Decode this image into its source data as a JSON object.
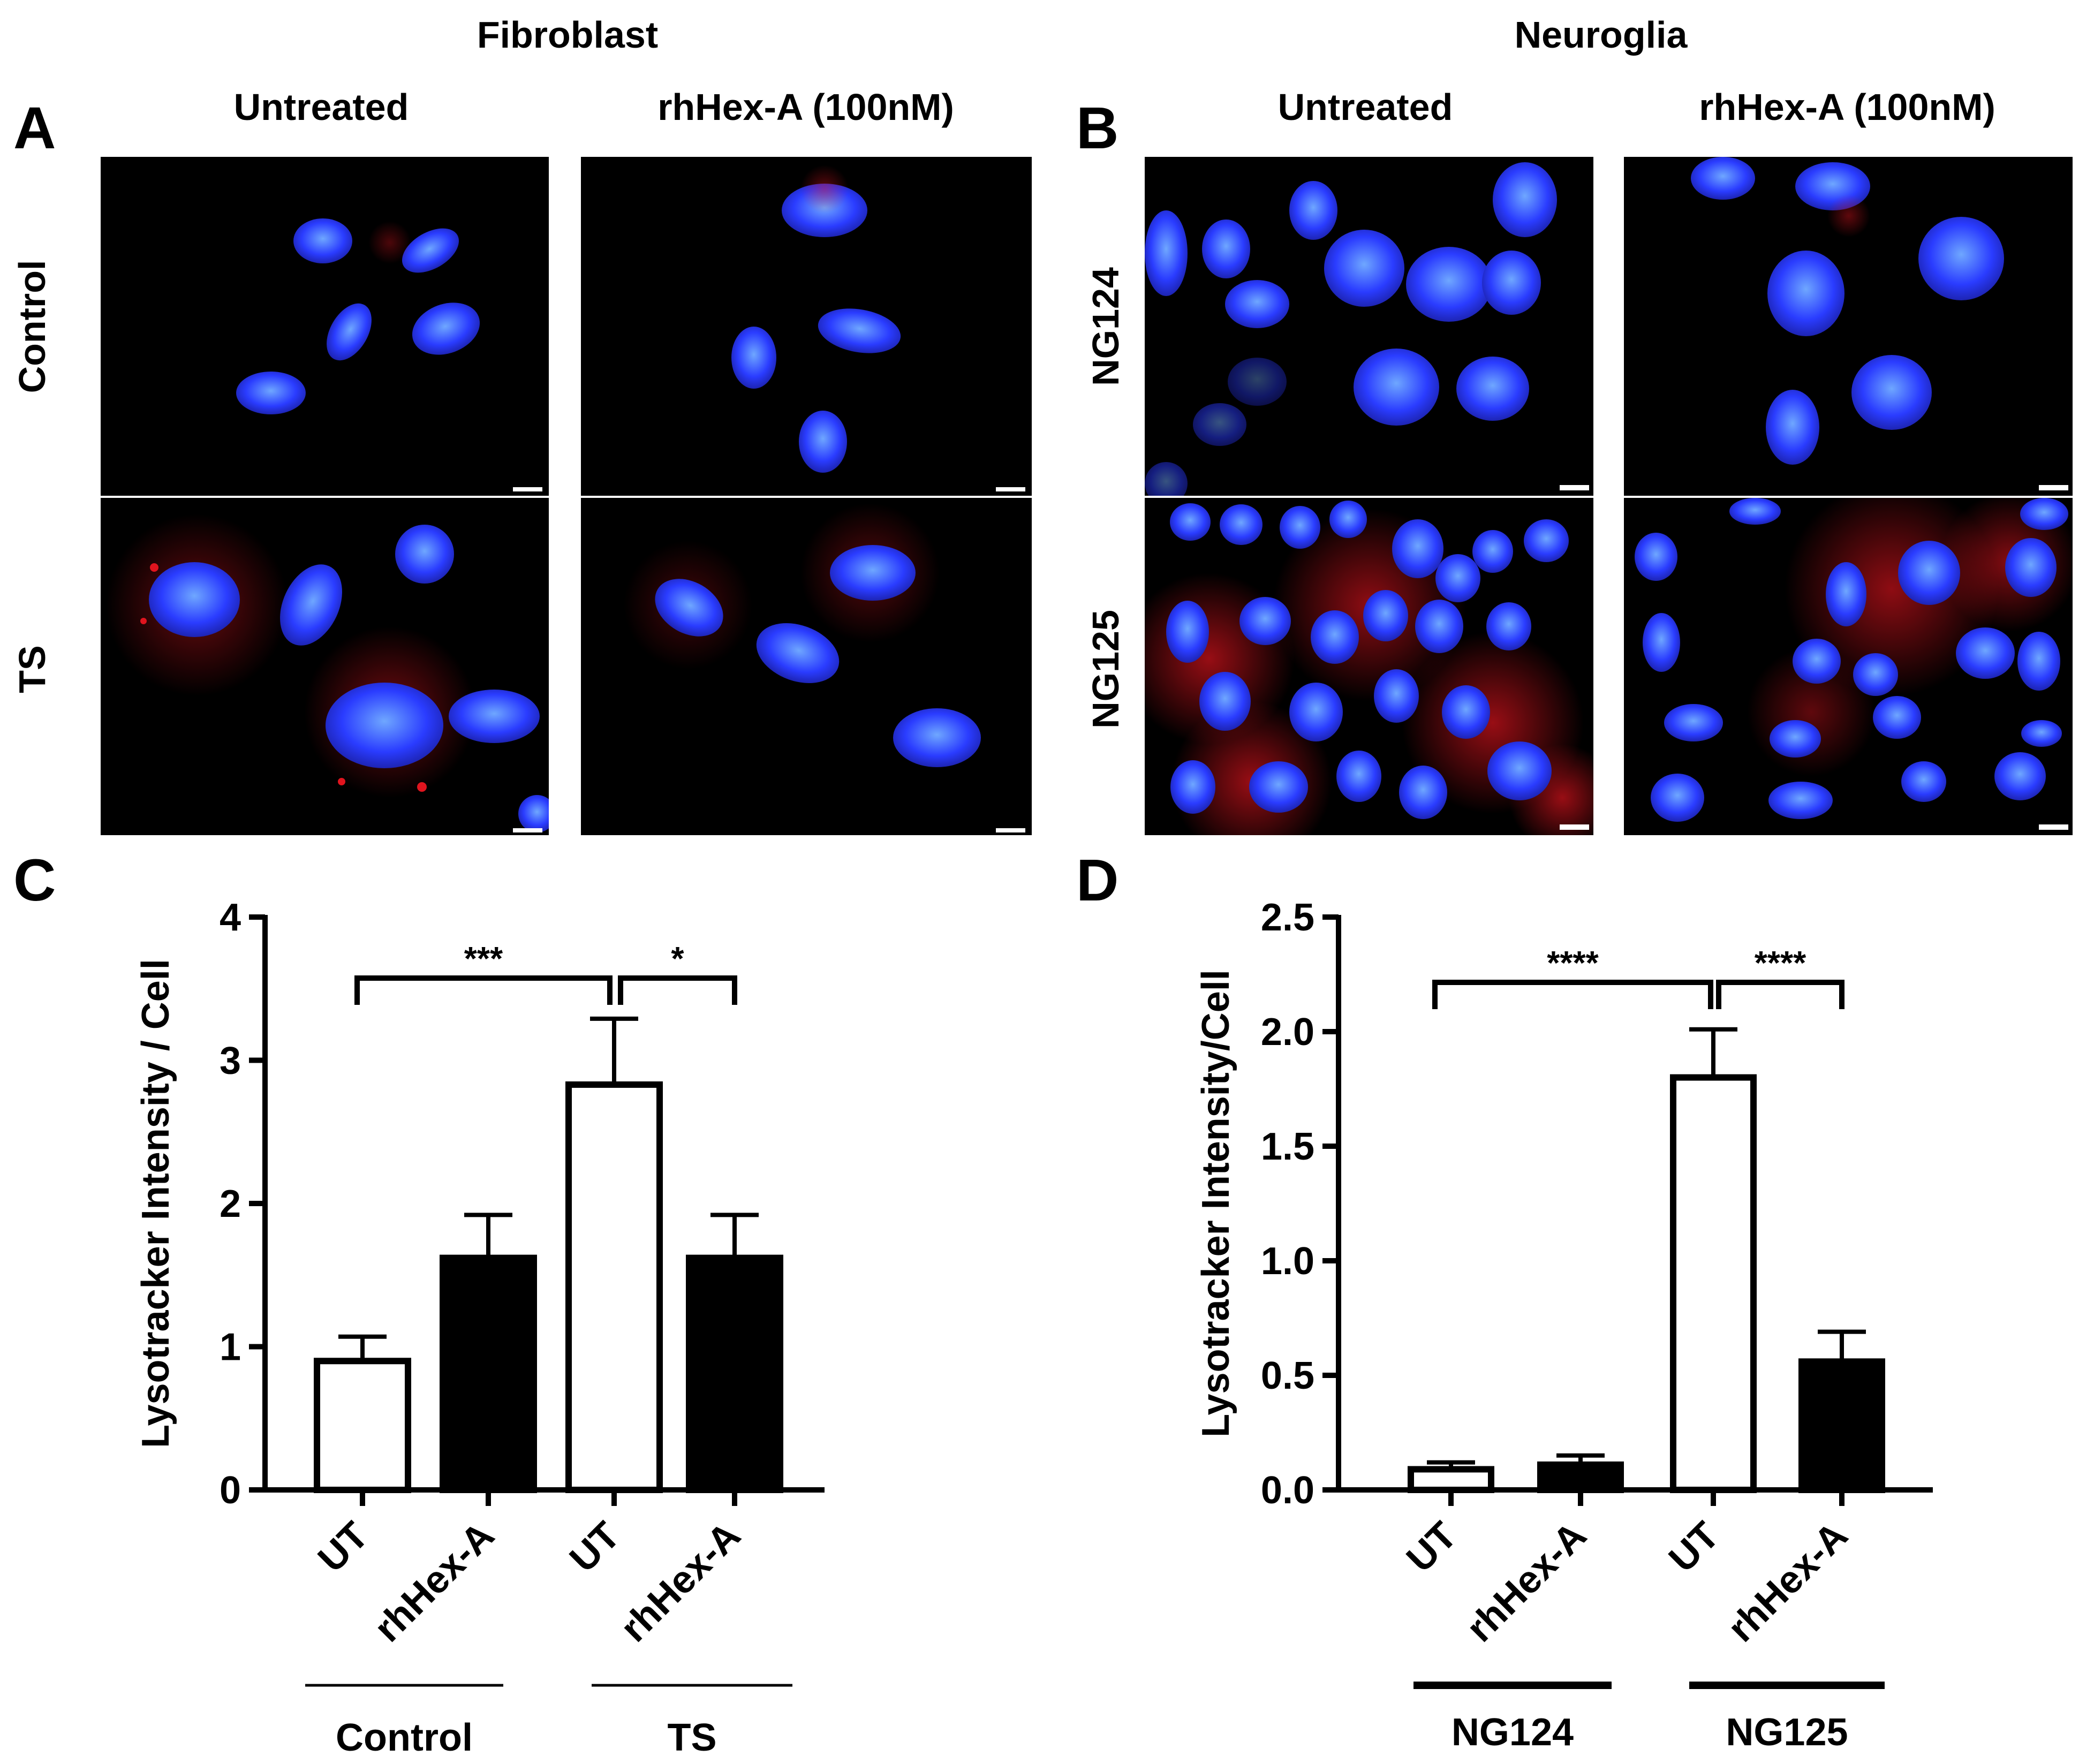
{
  "headers": {
    "left_group": "Fibroblast",
    "right_group": "Neuroglia",
    "col_untreated": "Untreated",
    "col_treated": "rhHex-A (100nM)"
  },
  "panels": {
    "A": "A",
    "B": "B",
    "C": "C",
    "D": "D"
  },
  "row_labels": {
    "fib_top": "Control",
    "fib_bottom": "TS",
    "neu_top": "NG124",
    "neu_bottom": "NG125"
  },
  "colors": {
    "nucleus": "#2a3cff",
    "lysotracker": "#e0141e",
    "background": "#000000"
  },
  "chart_data": [
    {
      "type": "bar",
      "panel": "C",
      "title": "",
      "ylabel": "Lysotracker Intensity / Cell",
      "ylim": [
        0,
        4
      ],
      "yticks": [
        "0",
        "1",
        "2",
        "3",
        "4"
      ],
      "categories": [
        "UT",
        "rhHex-A",
        "UT",
        "rhHex-A"
      ],
      "values": [
        0.9,
        1.62,
        2.83,
        1.62
      ],
      "errors": [
        0.17,
        0.3,
        0.46,
        0.3
      ],
      "fills": [
        "white",
        "black",
        "white",
        "black"
      ],
      "groups": [
        {
          "label": "Control",
          "from": 0,
          "to": 1
        },
        {
          "label": "TS",
          "from": 2,
          "to": 3
        }
      ],
      "significance": [
        {
          "from": 0,
          "to": 2,
          "label": "***"
        },
        {
          "from": 2,
          "to": 3,
          "label": "*"
        }
      ]
    },
    {
      "type": "bar",
      "panel": "D",
      "title": "",
      "ylabel": "Lysotracker Intensity/Cell",
      "ylim": [
        0,
        2.5
      ],
      "yticks": [
        "0.0",
        "0.5",
        "1.0",
        "1.5",
        "2.0",
        "2.5"
      ],
      "categories": [
        "UT",
        "rhHex-A",
        "UT",
        "rhHex-A"
      ],
      "values": [
        0.09,
        0.11,
        1.8,
        0.56
      ],
      "errors": [
        0.03,
        0.04,
        0.21,
        0.13
      ],
      "fills": [
        "white",
        "black",
        "white",
        "black"
      ],
      "groups": [
        {
          "label": "NG124",
          "from": 0,
          "to": 1
        },
        {
          "label": "NG125",
          "from": 2,
          "to": 3
        }
      ],
      "significance": [
        {
          "from": 0,
          "to": 2,
          "label": "****"
        },
        {
          "from": 2,
          "to": 3,
          "label": "****"
        }
      ]
    }
  ]
}
